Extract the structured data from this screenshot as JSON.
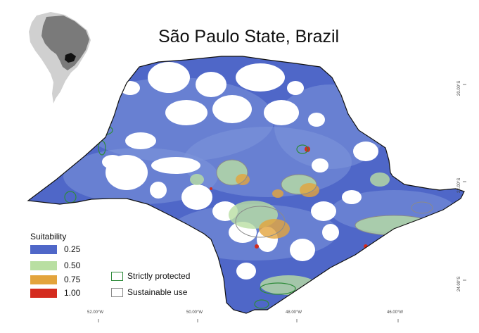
{
  "title": "São Paulo State, Brazil",
  "legend": {
    "title": "Suitability",
    "items": [
      {
        "label": "0.25",
        "color": "#4f67c8"
      },
      {
        "label": "0.50",
        "color": "#b9dfa2"
      },
      {
        "label": "0.75",
        "color": "#e3a43c"
      },
      {
        "label": "1.00",
        "color": "#d42b1e"
      }
    ]
  },
  "protected_areas": [
    {
      "label": "Strictly protected",
      "color": "#2e8b3a"
    },
    {
      "label": "Sustainable use",
      "color": "#8a8a8a"
    }
  ],
  "longitude_ticks": [
    "52.00°W",
    "50.00°W",
    "48.00°W",
    "46.00°W"
  ],
  "latitude_ticks": [
    "20.00°S",
    "22.00°S",
    "24.00°S"
  ],
  "colors": {
    "state_outline": "#111111",
    "no_data": "#ffffff",
    "inset_continent": "#d0d0d0",
    "inset_brazil": "#7a7a7a",
    "inset_state": "#111111"
  }
}
